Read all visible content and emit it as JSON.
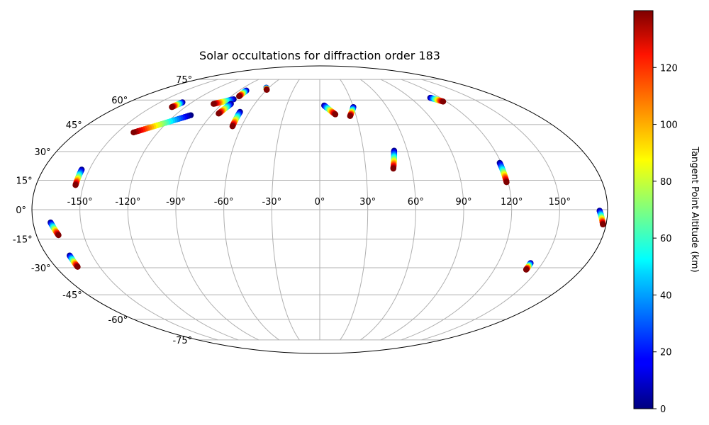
{
  "chart_data": {
    "type": "scatter",
    "projection": "mollweide",
    "title": "Solar occultations for diffraction order 183",
    "grid": true,
    "lon_ticks": [
      -150,
      -120,
      -90,
      -60,
      -30,
      0,
      30,
      60,
      90,
      120,
      150
    ],
    "lon_tick_labels": [
      "-150°",
      "-120°",
      "-90°",
      "-60°",
      "-30°",
      "0°",
      "30°",
      "60°",
      "90°",
      "120°",
      "150°"
    ],
    "lat_ticks": [
      75,
      60,
      45,
      30,
      15,
      0,
      -15,
      -30,
      -45,
      -60,
      -75
    ],
    "lat_tick_labels": [
      "75°",
      "60°",
      "45°",
      "30°",
      "15°",
      "0°",
      "-15°",
      "-30°",
      "-45°",
      "-60°",
      "-75°"
    ],
    "colorbar": {
      "label": "Tangent Point Altitude (km)",
      "range": [
        0,
        140
      ],
      "ticks": [
        0,
        20,
        40,
        60,
        80,
        100,
        120
      ],
      "tick_labels": [
        "0",
        "20",
        "40",
        "60",
        "80",
        "100",
        "120"
      ],
      "colormap": "jet"
    },
    "series": [
      {
        "lon_start": -155,
        "lat_start": 20.5,
        "lon_end": -155,
        "lat_end": 12.5
      },
      {
        "lon_start": -129,
        "lat_start": 58.5,
        "lon_end": -132,
        "lat_end": 55.5
      },
      {
        "lon_start": -107,
        "lat_start": 50.5,
        "lon_end": -138,
        "lat_end": 40.5
      },
      {
        "lon_start": -84,
        "lat_start": 60.5,
        "lon_end": -98,
        "lat_end": 57.5
      },
      {
        "lon_start": -82,
        "lat_start": 66.5,
        "lon_end": -82,
        "lat_end": 62.5
      },
      {
        "lon_start": -82,
        "lat_start": 57.5,
        "lon_end": -85,
        "lat_end": 51.5
      },
      {
        "lon_start": -68,
        "lat_start": 52.5,
        "lon_end": -67,
        "lat_end": 44.0
      },
      {
        "lon_start": -63,
        "lat_start": 68.5,
        "lon_end": -60,
        "lat_end": 67.0
      },
      {
        "lon_start": 4,
        "lat_start": 56.5,
        "lon_end": 13,
        "lat_end": 51.0
      },
      {
        "lon_start": 30,
        "lat_start": 55.5,
        "lon_end": 25,
        "lat_end": 50.0
      },
      {
        "lon_start": 51,
        "lat_start": 30.5,
        "lon_end": 48,
        "lat_end": 21.0
      },
      {
        "lon_start": 110,
        "lat_start": 61.5,
        "lon_end": 117,
        "lat_end": 59.0
      },
      {
        "lon_start": 119,
        "lat_start": 24.0,
        "lon_end": 119,
        "lat_end": 14.0
      },
      {
        "lon_start": 175,
        "lat_start": -0.5,
        "lon_end": 178,
        "lat_end": -7.5
      },
      {
        "lon_start": -169,
        "lat_start": -6.5,
        "lon_end": -166,
        "lat_end": -13.0
      },
      {
        "lon_start": -165,
        "lat_start": -23.5,
        "lon_end": -165,
        "lat_end": -29.5
      },
      {
        "lon_start": 142,
        "lat_start": -27.5,
        "lon_end": 142,
        "lat_end": -31.0
      }
    ]
  }
}
